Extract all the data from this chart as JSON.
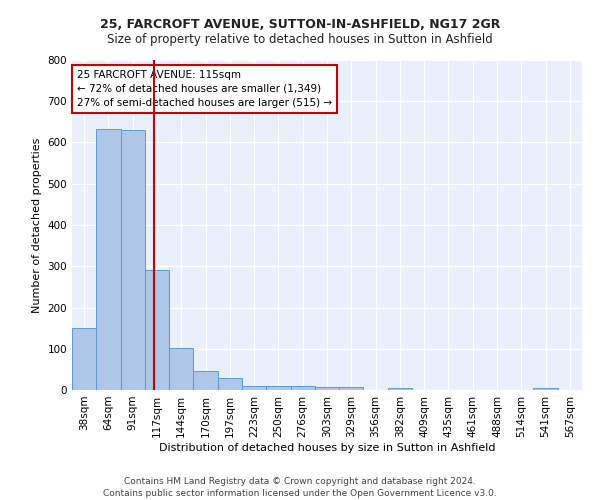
{
  "title1": "25, FARCROFT AVENUE, SUTTON-IN-ASHFIELD, NG17 2GR",
  "title2": "Size of property relative to detached houses in Sutton in Ashfield",
  "xlabel": "Distribution of detached houses by size in Sutton in Ashfield",
  "ylabel": "Number of detached properties",
  "footer": "Contains HM Land Registry data © Crown copyright and database right 2024.\nContains public sector information licensed under the Open Government Licence v3.0.",
  "bin_labels": [
    "38sqm",
    "64sqm",
    "91sqm",
    "117sqm",
    "144sqm",
    "170sqm",
    "197sqm",
    "223sqm",
    "250sqm",
    "276sqm",
    "303sqm",
    "329sqm",
    "356sqm",
    "382sqm",
    "409sqm",
    "435sqm",
    "461sqm",
    "488sqm",
    "514sqm",
    "541sqm",
    "567sqm"
  ],
  "bar_heights": [
    150,
    632,
    630,
    290,
    103,
    45,
    28,
    10,
    10,
    10,
    8,
    8,
    0,
    5,
    0,
    0,
    0,
    0,
    0,
    5,
    0
  ],
  "bar_color": "#aec6e8",
  "bar_edge_color": "#5b9bd5",
  "red_line_x": 2.88,
  "annotation_text": "25 FARCROFT AVENUE: 115sqm\n← 72% of detached houses are smaller (1,349)\n27% of semi-detached houses are larger (515) →",
  "annotation_box_color": "#ffffff",
  "annotation_box_edge_color": "#cc0000",
  "ylim": [
    0,
    800
  ],
  "yticks": [
    0,
    100,
    200,
    300,
    400,
    500,
    600,
    700,
    800
  ],
  "bg_color": "#eaf0fb",
  "grid_color": "#ffffff",
  "fig_bg_color": "#ffffff",
  "title1_fontsize": 9,
  "title2_fontsize": 8.5,
  "xlabel_fontsize": 8,
  "ylabel_fontsize": 8,
  "tick_fontsize": 7.5,
  "footer_fontsize": 6.5,
  "ann_fontsize": 7.5
}
